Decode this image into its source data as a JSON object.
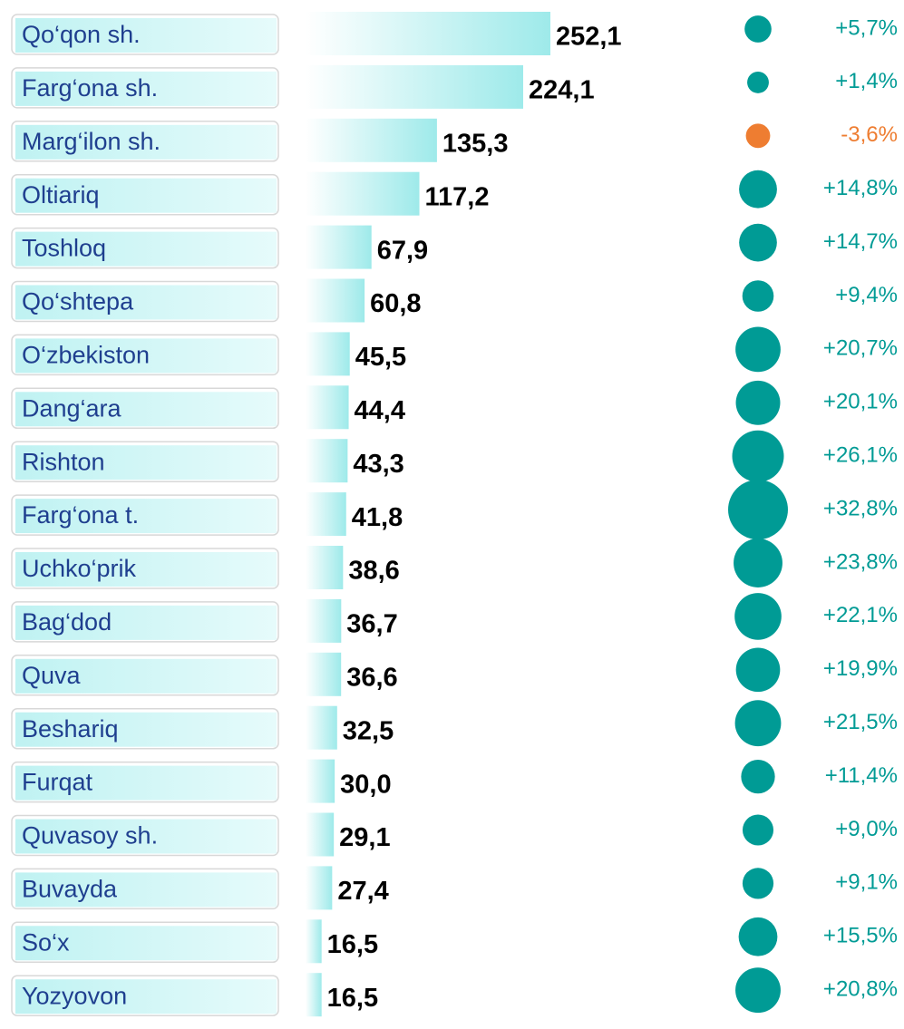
{
  "chart_data": {
    "type": "bar",
    "categories": [
      "Qo‘qon sh.",
      "Farg‘ona sh.",
      "Marg‘ilon sh.",
      "Oltiariq",
      "Toshloq",
      "Qo‘shtepa",
      "O‘zbekiston",
      "Dang‘ara",
      "Rishton",
      "Farg‘ona t.",
      "Uchko‘prik",
      "Bag‘dod",
      "Quva",
      "Beshariq",
      "Furqat",
      "Quvasoy sh.",
      "Buvayda",
      "So‘x",
      "Yozyovon"
    ],
    "series": [
      {
        "type": "bar",
        "color": "#9eeaea",
        "values": [
          252.1,
          224.1,
          135.3,
          117.2,
          67.9,
          60.8,
          45.5,
          44.4,
          43.3,
          41.8,
          38.6,
          36.7,
          36.6,
          32.5,
          30.0,
          29.1,
          27.4,
          16.5,
          16.5
        ],
        "value_labels": [
          "252,1",
          "224,1",
          "135,3",
          "117,2",
          "67,9",
          "60,8",
          "45,5",
          "44,4",
          "43,3",
          "41,8",
          "38,6",
          "36,7",
          "36,6",
          "32,5",
          "30,0",
          "29,1",
          "27,4",
          "16,5",
          "16,5"
        ]
      },
      {
        "type": "bubble",
        "color": "#009b95",
        "negative_color": "#ee7d31",
        "values": [
          5.7,
          1.4,
          -3.6,
          14.8,
          14.7,
          9.4,
          20.7,
          20.1,
          26.1,
          32.8,
          23.8,
          22.1,
          19.9,
          21.5,
          11.4,
          9.0,
          9.1,
          15.5,
          20.8
        ],
        "value_labels": [
          "+5,7%",
          "+1,4%",
          "-3,6%",
          "+14,8%",
          "+14,7%",
          "+9,4%",
          "+20,7%",
          "+20,1%",
          "+26,1%",
          "+32,8%",
          "+23,8%",
          "+22,1%",
          "+19,9%",
          "+21,5%",
          "+11,4%",
          "+9,0%",
          "+9,1%",
          "+15,5%",
          "+20,8%"
        ]
      }
    ]
  }
}
